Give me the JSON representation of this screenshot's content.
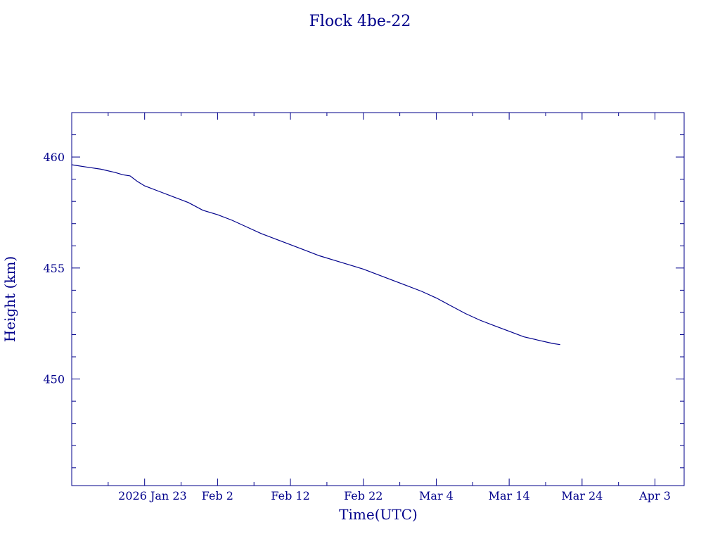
{
  "chart_data": {
    "type": "line",
    "title": "Flock 4be-22",
    "xlabel": "Time(UTC)",
    "ylabel": "Height (km)",
    "color": "#00008b",
    "x_axis": {
      "min": "2026-01-13",
      "max": "2026-04-07",
      "major_ticks": [
        {
          "date": "2026-01-23",
          "label": "2026 Jan 23"
        },
        {
          "date": "2026-02-02",
          "label": "Feb  2"
        },
        {
          "date": "2026-02-12",
          "label": "Feb 12"
        },
        {
          "date": "2026-02-22",
          "label": "Feb 22"
        },
        {
          "date": "2026-03-04",
          "label": "Mar  4"
        },
        {
          "date": "2026-03-14",
          "label": "Mar 14"
        },
        {
          "date": "2026-03-24",
          "label": "Mar 24"
        },
        {
          "date": "2026-04-03",
          "label": "Apr  3"
        }
      ],
      "minor_ticks": [
        "2026-01-18",
        "2026-01-28",
        "2026-02-07",
        "2026-02-17",
        "2026-02-27",
        "2026-03-09",
        "2026-03-19",
        "2026-03-29"
      ]
    },
    "y_axis": {
      "min": 445.2,
      "max": 462.0,
      "major_ticks": [
        450,
        455,
        460
      ],
      "minor_step": 1
    },
    "grid": false,
    "series": [
      {
        "x": [
          "2026-01-13",
          "2026-01-15",
          "2026-01-17",
          "2026-01-19",
          "2026-01-20",
          "2026-01-21",
          "2026-01-22",
          "2026-01-23",
          "2026-01-25",
          "2026-01-27",
          "2026-01-29",
          "2026-01-31",
          "2026-02-02",
          "2026-02-04",
          "2026-02-06",
          "2026-02-08",
          "2026-02-10",
          "2026-02-12",
          "2026-02-14",
          "2026-02-16",
          "2026-02-18",
          "2026-02-20",
          "2026-02-22",
          "2026-02-24",
          "2026-02-26",
          "2026-02-28",
          "2026-03-02",
          "2026-03-04",
          "2026-03-06",
          "2026-03-08",
          "2026-03-10",
          "2026-03-12",
          "2026-03-14",
          "2026-03-16",
          "2026-03-18",
          "2026-03-20",
          "2026-03-21"
        ],
        "y": [
          459.65,
          459.55,
          459.45,
          459.3,
          459.2,
          459.15,
          458.9,
          458.7,
          458.45,
          458.2,
          457.95,
          457.6,
          457.4,
          457.15,
          456.85,
          456.55,
          456.3,
          456.05,
          455.8,
          455.55,
          455.35,
          455.15,
          454.95,
          454.7,
          454.45,
          454.2,
          453.95,
          453.65,
          453.3,
          452.95,
          452.65,
          452.4,
          452.15,
          451.9,
          451.75,
          451.6,
          451.55
        ]
      }
    ]
  }
}
